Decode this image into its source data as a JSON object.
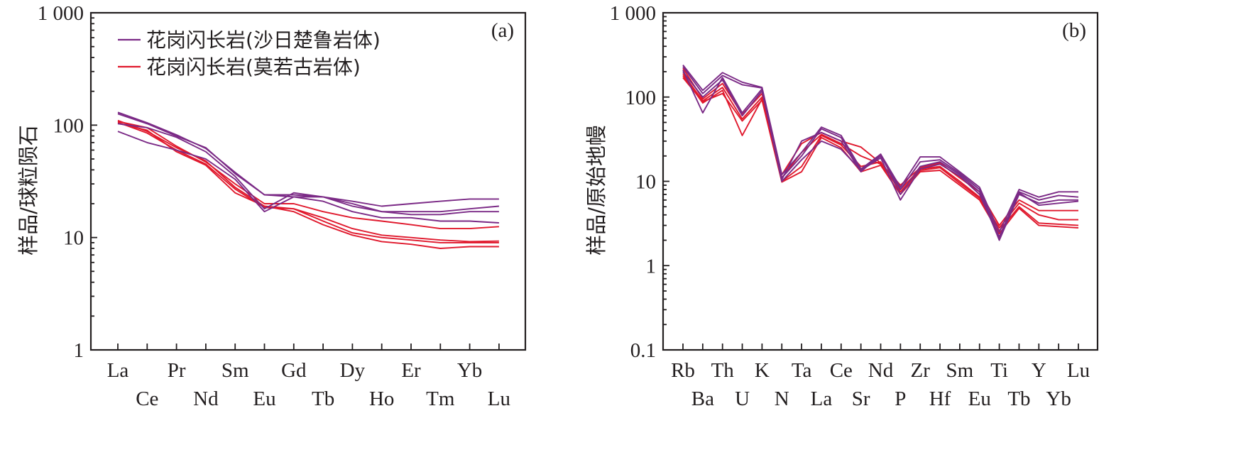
{
  "colors": {
    "purple": "#7b2a86",
    "red": "#e0192d",
    "axis": "#231f20"
  },
  "chart_data": [
    {
      "type": "line",
      "panel_label": "(a)",
      "ylabel": "样品/球粒陨石",
      "yscale": "log",
      "ylim": [
        1,
        1000
      ],
      "yticks": [
        1,
        10,
        100,
        1000
      ],
      "ytick_labels": [
        "1",
        "10",
        "100",
        "1 000"
      ],
      "categories": [
        "La",
        "Ce",
        "Pr",
        "Nd",
        "Sm",
        "Eu",
        "Gd",
        "Tb",
        "Dy",
        "Ho",
        "Er",
        "Tm",
        "Yb",
        "Lu"
      ],
      "legend": {
        "position": "top-left",
        "entries": [
          {
            "label": "花岗闪长岩(沙日楚鲁岩体)",
            "color": "purple"
          },
          {
            "label": "花岗闪长岩(莫若古岩体)",
            "color": "red"
          }
        ]
      },
      "series": [
        {
          "group": "purple",
          "values": [
            130,
            105,
            82,
            62,
            38,
            24,
            23,
            23,
            21,
            19,
            20,
            21,
            22,
            22
          ]
        },
        {
          "group": "purple",
          "values": [
            126,
            103,
            80,
            63,
            37,
            24,
            24,
            23,
            20,
            17,
            17,
            17,
            18,
            19
          ]
        },
        {
          "group": "purple",
          "values": [
            103,
            95,
            78,
            58,
            35,
            18,
            25,
            23,
            19,
            17,
            16,
            16,
            17,
            17
          ]
        },
        {
          "group": "purple",
          "values": [
            88,
            70,
            60,
            50,
            33,
            17,
            23,
            21,
            17,
            15,
            15,
            14,
            14,
            13.5
          ]
        },
        {
          "group": "red",
          "values": [
            108,
            95,
            65,
            47,
            30,
            20,
            20,
            17,
            15,
            14,
            13,
            12,
            12,
            12.5
          ]
        },
        {
          "group": "red",
          "values": [
            110,
            88,
            63,
            48,
            28,
            19,
            18,
            15,
            12,
            10.5,
            10,
            9.5,
            9.2,
            9.3
          ]
        },
        {
          "group": "red",
          "values": [
            106,
            85,
            60,
            45,
            27,
            18.5,
            18,
            14,
            11,
            10,
            9.5,
            9,
            9,
            9
          ]
        },
        {
          "group": "red",
          "values": [
            104,
            90,
            58,
            44,
            25,
            19,
            17,
            13,
            10.5,
            9.2,
            8.7,
            8,
            8.3,
            8.3
          ]
        }
      ]
    },
    {
      "type": "line",
      "panel_label": "(b)",
      "ylabel": "样品/原始地幔",
      "yscale": "log",
      "ylim": [
        0.1,
        1000
      ],
      "yticks": [
        0.1,
        1,
        10,
        100,
        1000
      ],
      "ytick_labels": [
        "0.1",
        "1",
        "10",
        "100",
        "1 000"
      ],
      "categories": [
        "Rb",
        "Ba",
        "Th",
        "U",
        "K",
        "N",
        "Ta",
        "La",
        "Ce",
        "Sr",
        "Nd",
        "P",
        "Zr",
        "Hf",
        "Sm",
        "Eu",
        "Ti",
        "Tb",
        "Y",
        "Yb",
        "Lu"
      ],
      "series": [
        {
          "group": "purple",
          "values": [
            240,
            120,
            195,
            150,
            130,
            12,
            22,
            44,
            35,
            14,
            21,
            8.5,
            19.5,
            19.5,
            13,
            8.5,
            2.5,
            8,
            6.5,
            7.5,
            7.5
          ]
        },
        {
          "group": "purple",
          "values": [
            230,
            110,
            180,
            140,
            128,
            11,
            20,
            42,
            33,
            13.5,
            20,
            8,
            17,
            18,
            12.5,
            8,
            2.2,
            7.5,
            6,
            6.8,
            6.5
          ]
        },
        {
          "group": "purple",
          "values": [
            210,
            65,
            170,
            65,
            125,
            10.5,
            30,
            38,
            30,
            13,
            21,
            7,
            15,
            17,
            12,
            7.5,
            2,
            7,
            5.5,
            6,
            6
          ]
        },
        {
          "group": "purple",
          "values": [
            200,
            100,
            160,
            60,
            118,
            10,
            18,
            30,
            24,
            13.5,
            19,
            6,
            14,
            16,
            11.5,
            7,
            2.1,
            7.3,
            5.2,
            5.5,
            5.8
          ]
        },
        {
          "group": "red",
          "values": [
            220,
            95,
            145,
            62,
            110,
            12,
            28,
            38,
            30,
            25.5,
            16.5,
            9,
            14.5,
            16.5,
            11,
            7.5,
            3,
            6,
            4.5,
            4.5,
            4.5
          ]
        },
        {
          "group": "red",
          "values": [
            190,
            90,
            130,
            55,
            100,
            11,
            22,
            36,
            28,
            20,
            16,
            8,
            14,
            15,
            10,
            6.5,
            2.8,
            5.5,
            4,
            3.5,
            3.5
          ]
        },
        {
          "group": "red",
          "values": [
            180,
            85,
            120,
            35,
            95,
            10,
            15,
            35,
            27,
            15,
            17,
            7.5,
            13.5,
            14.5,
            9.5,
            6.3,
            2.6,
            5,
            3.2,
            3.1,
            3
          ]
        },
        {
          "group": "red",
          "values": [
            170,
            88,
            110,
            52,
            92,
            9.8,
            13,
            33,
            25,
            13,
            15.5,
            7,
            13,
            13.5,
            9,
            6,
            2.4,
            4.8,
            3,
            2.9,
            2.8
          ]
        }
      ]
    }
  ]
}
